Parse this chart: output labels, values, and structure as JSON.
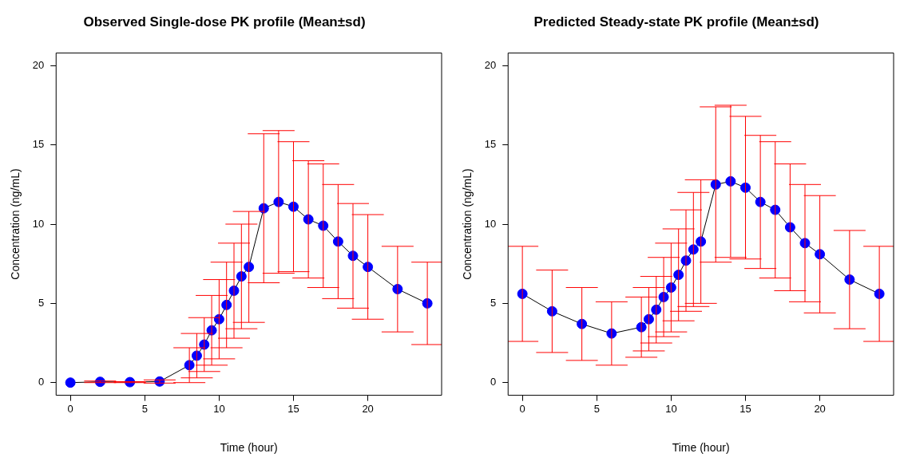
{
  "chart_data": [
    {
      "type": "line",
      "title": "Observed Single-dose PK profile (Mean±sd)",
      "xlabel": "Time (hour)",
      "ylabel": "Concentration (ng/mL)",
      "marker": "circle",
      "xlim": [
        -0.96,
        24.96
      ],
      "ylim": [
        -0.8,
        20.8
      ],
      "xticks": [
        0,
        5,
        10,
        15,
        20
      ],
      "yticks": [
        0,
        5,
        10,
        15,
        20
      ],
      "x": [
        0,
        2,
        4,
        6,
        8,
        8.5,
        9,
        9.5,
        10,
        10.5,
        11,
        11.5,
        12,
        13,
        14,
        15,
        16,
        17,
        18,
        19,
        20,
        22,
        24
      ],
      "series": [
        {
          "color": "#0000ff",
          "values": [
            0,
            0.05,
            0.03,
            0.07,
            1.1,
            1.7,
            2.4,
            3.3,
            4.0,
            4.9,
            5.8,
            6.7,
            7.3,
            11.0,
            11.4,
            11.1,
            10.3,
            9.9,
            8.9,
            8.0,
            7.3,
            5.9,
            5.0
          ],
          "errors": [
            null,
            0.05,
            0.03,
            0.1,
            1.1,
            1.4,
            1.7,
            2.2,
            2.5,
            2.7,
            3.0,
            3.3,
            3.5,
            4.7,
            4.5,
            4.1,
            3.7,
            3.9,
            3.6,
            3.3,
            3.3,
            2.7,
            2.6
          ]
        }
      ]
    },
    {
      "type": "line",
      "title": "Predicted Steady-state PK profile (Mean±sd)",
      "xlabel": "Time (hour)",
      "ylabel": "Concentration (ng/mL)",
      "marker": "circle",
      "xlim": [
        -0.96,
        24.96
      ],
      "ylim": [
        -0.8,
        20.8
      ],
      "xticks": [
        0,
        5,
        10,
        15,
        20
      ],
      "yticks": [
        0,
        5,
        10,
        15,
        20
      ],
      "x": [
        0,
        2,
        4,
        6,
        8,
        8.5,
        9,
        9.5,
        10,
        10.5,
        11,
        11.5,
        12,
        13,
        14,
        15,
        16,
        17,
        18,
        19,
        20,
        22,
        24
      ],
      "series": [
        {
          "color": "#0000ff",
          "values": [
            5.6,
            4.5,
            3.7,
            3.1,
            3.5,
            4.0,
            4.6,
            5.4,
            6.0,
            6.8,
            7.7,
            8.4,
            8.9,
            12.5,
            12.7,
            12.3,
            11.4,
            10.9,
            9.8,
            8.8,
            8.1,
            6.5,
            5.6
          ],
          "errors": [
            3.0,
            2.6,
            2.3,
            2.0,
            1.9,
            2.0,
            2.1,
            2.5,
            2.8,
            2.9,
            3.2,
            3.6,
            3.9,
            4.9,
            4.8,
            4.5,
            4.2,
            4.3,
            4.0,
            3.7,
            3.7,
            3.1,
            3.0
          ]
        }
      ]
    }
  ]
}
